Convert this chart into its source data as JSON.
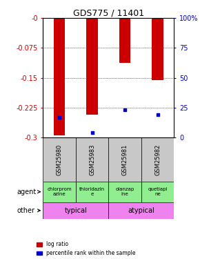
{
  "title": "GDS775 / 11401",
  "samples": [
    "GSM25980",
    "GSM25983",
    "GSM25981",
    "GSM25982"
  ],
  "log_ratios": [
    -0.295,
    -0.243,
    -0.113,
    -0.155
  ],
  "percentile_ranks_pct": [
    17,
    4,
    23,
    19
  ],
  "ylim_left": [
    -0.3,
    0.0
  ],
  "yticks_left": [
    0.0,
    -0.075,
    -0.15,
    -0.225,
    -0.3
  ],
  "ytick_labels_left": [
    "-0",
    "-0.075",
    "-0.15",
    "-0.225",
    "-0.3"
  ],
  "ytick_labels_right": [
    "100%",
    "75",
    "50",
    "25",
    "0"
  ],
  "agent_labels": [
    "chlorprom\nazine",
    "thioridazin\ne",
    "olanzap\nine",
    "quetiapi\nne"
  ],
  "other_data": [
    [
      "typical",
      0,
      2
    ],
    [
      "atypical",
      2,
      4
    ]
  ],
  "bar_color": "#CC0000",
  "dot_color": "#0000CC",
  "bar_width": 0.35,
  "left_color": "#CC0000",
  "right_color": "#0000CC",
  "gsm_bg": "#C8C8C8",
  "agent_bg": "#90EE90",
  "other_bg": "#EE82EE",
  "legend_labels": [
    "log ratio",
    "percentile rank within the sample"
  ]
}
